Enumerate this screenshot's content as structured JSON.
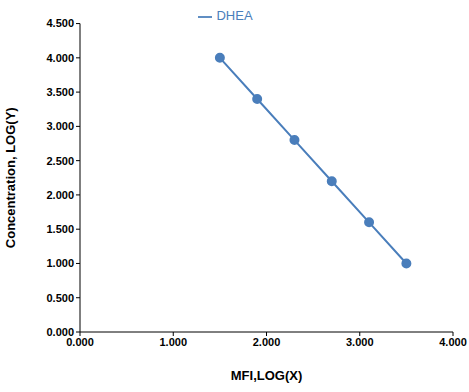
{
  "chart_data": {
    "type": "line",
    "x_label": "MFI,LOG(X)",
    "y_label": "Concentration, LOG(Y)",
    "x": [
      1.5,
      1.9,
      2.3,
      2.7,
      3.1,
      3.5
    ],
    "series": [
      {
        "name": "DHEA",
        "color": "#4a7ebb",
        "values": [
          4.0,
          3.4,
          2.8,
          2.2,
          1.6,
          1.0
        ],
        "marker": "circle",
        "line_style": "solid"
      }
    ],
    "xlim": [
      0,
      4
    ],
    "xticks": [
      {
        "value": 0,
        "label": "0.000"
      },
      {
        "value": 1,
        "label": "1.000"
      },
      {
        "value": 2,
        "label": "2.000"
      },
      {
        "value": 3,
        "label": "3.000"
      },
      {
        "value": 4,
        "label": "4.000"
      }
    ],
    "ylim": [
      0,
      4.5
    ],
    "yticks": [
      {
        "value": 0,
        "label": "0.000"
      },
      {
        "value": 0.5,
        "label": "0.500"
      },
      {
        "value": 1,
        "label": "1.000"
      },
      {
        "value": 1.5,
        "label": "1.500"
      },
      {
        "value": 2,
        "label": "2.000"
      },
      {
        "value": 2.5,
        "label": "2.500"
      },
      {
        "value": 3,
        "label": "3.000"
      },
      {
        "value": 3.5,
        "label": "3.500"
      },
      {
        "value": 4,
        "label": "4.000"
      },
      {
        "value": 4.5,
        "label": "4.500"
      }
    ],
    "grid": false,
    "legend": "top"
  }
}
